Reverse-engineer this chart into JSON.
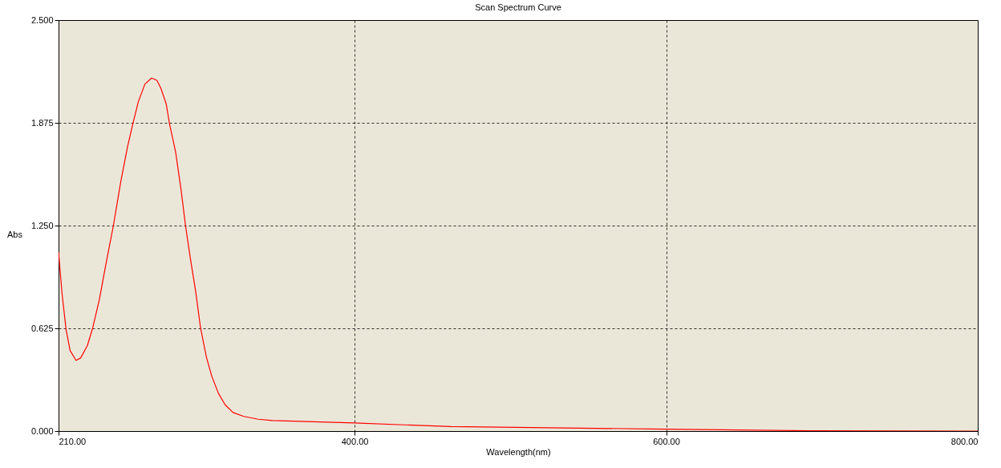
{
  "chart_data": {
    "type": "line",
    "title": "Scan Spectrum Curve",
    "xlabel": "Wavelength(nm)",
    "ylabel": "Abs",
    "x": [
      210,
      212.2,
      214.8,
      217.4,
      221.2,
      224.2,
      228.5,
      232,
      236.2,
      240.5,
      245.2,
      250,
      254.3,
      257.7,
      261.1,
      265.4,
      269.7,
      273.1,
      275.7,
      279.1,
      281.2,
      285.1,
      288.6,
      291.5,
      294.6,
      298,
      301.1,
      304.9,
      308.3,
      312.6,
      316.9,
      322,
      328.9,
      338.3,
      347.3,
      400,
      462,
      600,
      692,
      800
    ],
    "series": [
      {
        "color": "#ff0000",
        "values": [
          1.09,
          0.84,
          0.62,
          0.49,
          0.43,
          0.445,
          0.52,
          0.63,
          0.8,
          1.02,
          1.25,
          1.52,
          1.73,
          1.87,
          2.0,
          2.11,
          2.147,
          2.134,
          2.085,
          1.99,
          1.87,
          1.7,
          1.47,
          1.25,
          1.05,
          0.85,
          0.63,
          0.45,
          0.335,
          0.23,
          0.16,
          0.113,
          0.089,
          0.072,
          0.064,
          0.049,
          0.027,
          0.012,
          0.002,
          0.0
        ]
      }
    ],
    "xlim": [
      210,
      800
    ],
    "ylim": [
      0,
      2.5
    ],
    "xticks": [
      {
        "value": 210,
        "label": "210.00"
      },
      {
        "value": 400,
        "label": "400.00"
      },
      {
        "value": 600,
        "label": "600.00"
      },
      {
        "value": 800,
        "label": "800.00"
      }
    ],
    "yticks": [
      {
        "value": 0,
        "label": "0.000"
      },
      {
        "value": 0.625,
        "label": "0.625"
      },
      {
        "value": 1.25,
        "label": "1.250"
      },
      {
        "value": 1.875,
        "label": "1.875"
      },
      {
        "value": 2.5,
        "label": "2.500"
      }
    ],
    "grid": true,
    "line_style": "solid",
    "marker": "none"
  }
}
